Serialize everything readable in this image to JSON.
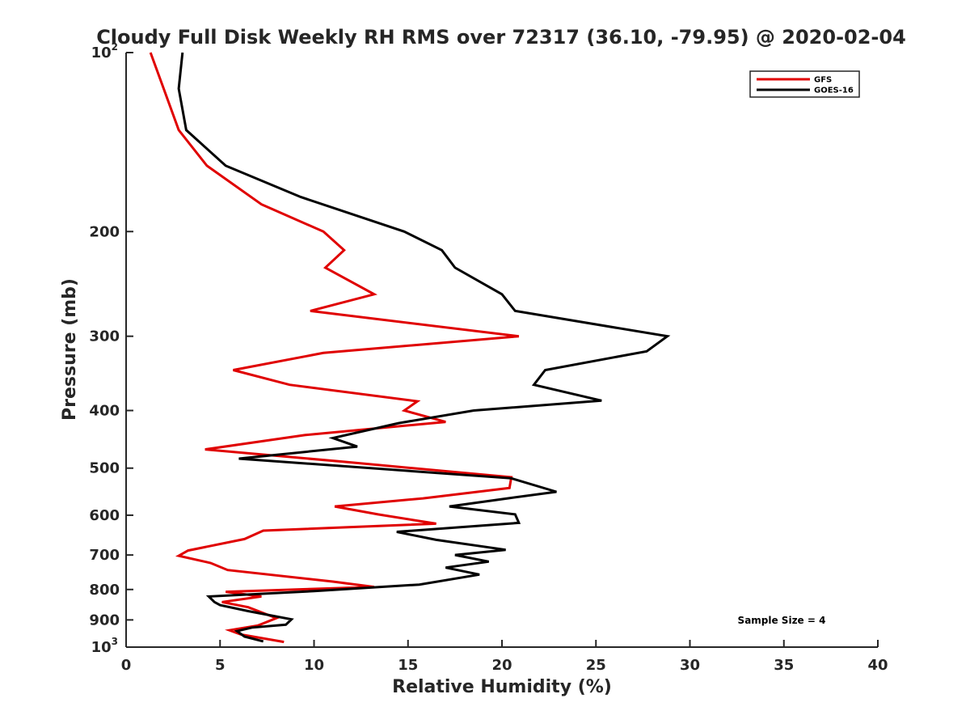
{
  "chart_data": {
    "type": "line",
    "title": "Cloudy Full Disk Weekly RH RMS over 72317 (36.10, -79.95) @ 2020-02-04",
    "xlabel": "Relative Humidity (%)",
    "ylabel": "Pressure (mb)",
    "xlim": [
      0,
      40
    ],
    "ylim": [
      100,
      1000
    ],
    "y_scale": "log",
    "y_reversed": true,
    "grid": false,
    "legend_position": "top-right",
    "annotation": "Sample Size = 4",
    "x_ticks": [
      "0",
      "5",
      "10",
      "15",
      "20",
      "25",
      "30",
      "35",
      "40"
    ],
    "x_tick_values": [
      0,
      5,
      10,
      15,
      20,
      25,
      30,
      35,
      40
    ],
    "y_ticks": [
      {
        "value": 100,
        "base": "10",
        "exp": "2"
      },
      {
        "value": 200,
        "label": "200"
      },
      {
        "value": 300,
        "label": "300"
      },
      {
        "value": 400,
        "label": "400"
      },
      {
        "value": 500,
        "label": "500"
      },
      {
        "value": 600,
        "label": "600"
      },
      {
        "value": 700,
        "label": "700"
      },
      {
        "value": 800,
        "label": "800"
      },
      {
        "value": 900,
        "label": "900"
      },
      {
        "value": 1000,
        "base": "10",
        "exp": "3"
      }
    ],
    "series": [
      {
        "name": "GFS",
        "color": "#e00000",
        "points": [
          [
            1.3,
            100
          ],
          [
            2.0,
            115
          ],
          [
            2.8,
            135
          ],
          [
            4.3,
            155
          ],
          [
            7.2,
            180
          ],
          [
            10.5,
            200
          ],
          [
            11.6,
            215
          ],
          [
            10.6,
            230
          ],
          [
            13.2,
            255
          ],
          [
            9.8,
            272
          ],
          [
            20.9,
            300
          ],
          [
            10.5,
            320
          ],
          [
            5.7,
            342
          ],
          [
            8.7,
            362
          ],
          [
            15.5,
            386
          ],
          [
            14.8,
            400
          ],
          [
            17.0,
            418
          ],
          [
            9.5,
            440
          ],
          [
            4.2,
            465
          ],
          [
            11.3,
            487
          ],
          [
            20.5,
            518
          ],
          [
            20.4,
            540
          ],
          [
            15.8,
            562
          ],
          [
            11.1,
            580
          ],
          [
            13.4,
            598
          ],
          [
            16.5,
            620
          ],
          [
            7.3,
            637
          ],
          [
            6.3,
            658
          ],
          [
            3.3,
            688
          ],
          [
            2.8,
            702
          ],
          [
            4.5,
            722
          ],
          [
            5.4,
            742
          ],
          [
            11.0,
            776
          ],
          [
            13.2,
            792
          ],
          [
            5.3,
            807
          ],
          [
            7.2,
            822
          ],
          [
            5.1,
            840
          ],
          [
            6.5,
            857
          ],
          [
            8.0,
            894
          ],
          [
            7.0,
            920
          ],
          [
            5.5,
            937
          ],
          [
            6.1,
            952
          ],
          [
            8.4,
            980
          ]
        ]
      },
      {
        "name": "GOES-16",
        "color": "#000000",
        "points": [
          [
            3.0,
            100
          ],
          [
            2.8,
            115
          ],
          [
            3.2,
            135
          ],
          [
            5.3,
            155
          ],
          [
            9.3,
            175
          ],
          [
            14.8,
            200
          ],
          [
            16.8,
            215
          ],
          [
            17.5,
            230
          ],
          [
            20.0,
            255
          ],
          [
            20.7,
            272
          ],
          [
            28.8,
            300
          ],
          [
            27.7,
            318
          ],
          [
            22.3,
            342
          ],
          [
            21.7,
            362
          ],
          [
            25.3,
            385
          ],
          [
            18.5,
            400
          ],
          [
            14.5,
            420
          ],
          [
            11.0,
            445
          ],
          [
            12.3,
            460
          ],
          [
            6.0,
            482
          ],
          [
            20.5,
            520
          ],
          [
            22.9,
            548
          ],
          [
            20.3,
            562
          ],
          [
            17.2,
            580
          ],
          [
            20.7,
            598
          ],
          [
            20.9,
            618
          ],
          [
            14.4,
            640
          ],
          [
            16.5,
            660
          ],
          [
            20.2,
            686
          ],
          [
            17.5,
            700
          ],
          [
            19.3,
            718
          ],
          [
            17.0,
            735
          ],
          [
            18.8,
            755
          ],
          [
            15.6,
            785
          ],
          [
            10.0,
            805
          ],
          [
            4.4,
            822
          ],
          [
            4.7,
            840
          ],
          [
            5.0,
            850
          ],
          [
            6.5,
            870
          ],
          [
            8.8,
            898
          ],
          [
            8.5,
            917
          ],
          [
            6.7,
            927
          ],
          [
            5.9,
            940
          ],
          [
            6.3,
            960
          ],
          [
            7.3,
            978
          ]
        ]
      }
    ]
  }
}
